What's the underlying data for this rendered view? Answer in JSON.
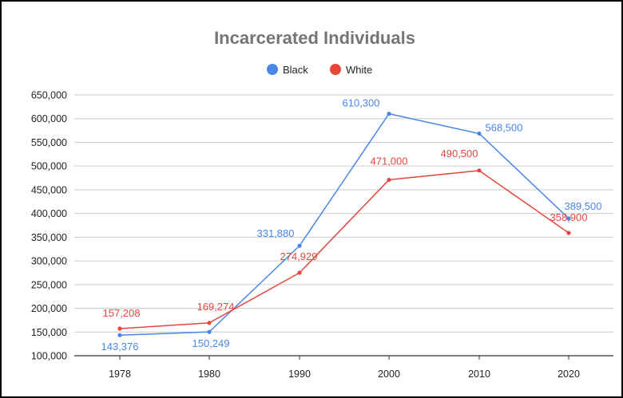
{
  "chart_data": {
    "type": "line",
    "title": "Incarcerated Individuals",
    "xlabel": "",
    "ylabel": "",
    "categories": [
      "1978",
      "1980",
      "1990",
      "2000",
      "2010",
      "2020"
    ],
    "ylim": [
      100000,
      650000
    ],
    "yticks": [
      100000,
      150000,
      200000,
      250000,
      300000,
      350000,
      400000,
      450000,
      500000,
      550000,
      600000,
      650000
    ],
    "ytick_labels": [
      "100,000",
      "150,000",
      "200,000",
      "250,000",
      "300,000",
      "350,000",
      "400,000",
      "450,000",
      "500,000",
      "550,000",
      "600,000",
      "650,000"
    ],
    "grid": true,
    "legend_position": "top",
    "series": [
      {
        "name": "Black",
        "color": "#4A86E8",
        "values": [
          143376,
          150249,
          331880,
          610300,
          568500,
          389500
        ],
        "labels": [
          "143,376",
          "150,249",
          "331,880",
          "610,300",
          "568,500",
          "389,500"
        ]
      },
      {
        "name": "White",
        "color": "#E8453C",
        "values": [
          157208,
          169274,
          274929,
          471000,
          490500,
          358900
        ],
        "labels": [
          "157,208",
          "169,274",
          "274,929",
          "471,000",
          "490,500",
          "358,900"
        ]
      }
    ]
  }
}
